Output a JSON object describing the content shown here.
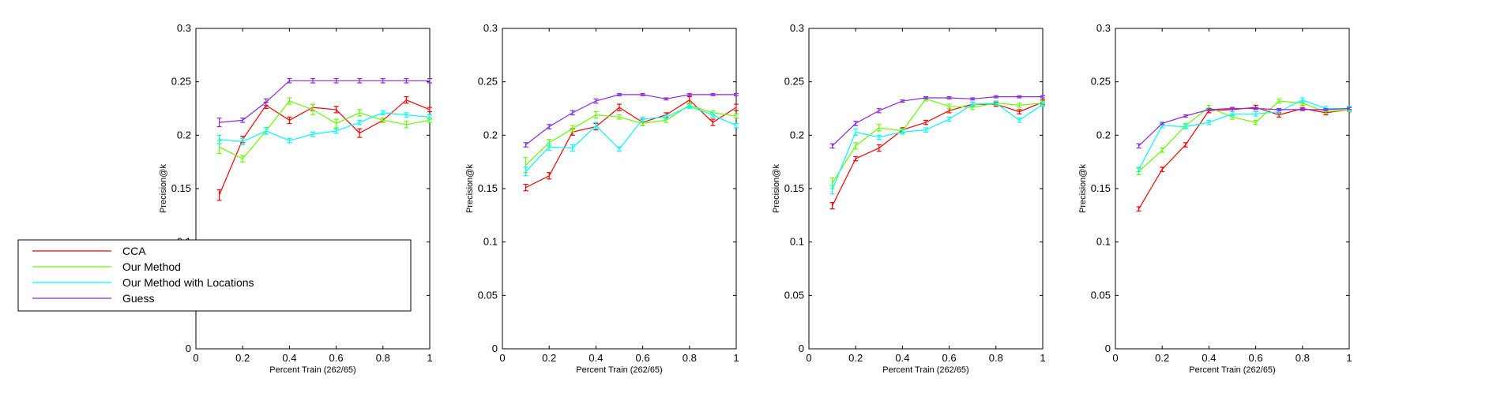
{
  "figure": {
    "legend": {
      "entries": [
        {
          "label": "CCA",
          "color": "#ff0000"
        },
        {
          "label": "Our Method",
          "color": "#66ff00"
        },
        {
          "label": "Our Method with Locations",
          "color": "#00ffff"
        },
        {
          "label": "Guess",
          "color": "#8a2be2"
        }
      ]
    }
  },
  "chart_data": [
    {
      "type": "line",
      "title": "",
      "xlabel": "Percent Train (262/65)",
      "ylabel": "Precision@k",
      "xlim": [
        0,
        1
      ],
      "ylim": [
        0,
        0.3
      ],
      "xticks": [
        0,
        0.2,
        0.4,
        0.6,
        0.8,
        1
      ],
      "xtick_labels": [
        "0",
        "0.2",
        "0.4",
        "0.6",
        "0.8",
        "1"
      ],
      "yticks": [
        0,
        0.05,
        0.1,
        0.15,
        0.2,
        0.25,
        0.3
      ],
      "ytick_labels": [
        "0",
        "0.05",
        "0.1",
        "0.15",
        "0.2",
        "0.25",
        "0.3"
      ],
      "x": [
        0.1,
        0.2,
        0.3,
        0.4,
        0.5,
        0.6,
        0.7,
        0.8,
        0.9,
        1.0
      ],
      "series": [
        {
          "name": "CCA",
          "color": "#ff0000",
          "values": [
            0.144,
            0.196,
            0.228,
            0.214,
            0.226,
            0.224,
            0.202,
            0.214,
            0.233,
            0.224
          ],
          "error": [
            0.005,
            0.003,
            0.003,
            0.003,
            0.003,
            0.003,
            0.004,
            0.002,
            0.003,
            0.002
          ]
        },
        {
          "name": "Our Method",
          "color": "#66ff00",
          "values": [
            0.189,
            0.178,
            0.204,
            0.232,
            0.224,
            0.211,
            0.221,
            0.214,
            0.21,
            0.214
          ],
          "error": [
            0.006,
            0.003,
            0.003,
            0.003,
            0.005,
            0.004,
            0.003,
            0.002,
            0.003,
            0.002
          ]
        },
        {
          "name": "Our Method with Locations",
          "color": "#00ffff",
          "values": [
            0.196,
            0.194,
            0.204,
            0.195,
            0.201,
            0.204,
            0.212,
            0.221,
            0.219,
            0.217
          ],
          "error": [
            0.004,
            0.003,
            0.003,
            0.002,
            0.002,
            0.002,
            0.002,
            0.002,
            0.002,
            0.002
          ]
        },
        {
          "name": "Guess",
          "color": "#8a2be2",
          "values": [
            0.212,
            0.214,
            0.231,
            0.251,
            0.251,
            0.251,
            0.251,
            0.251,
            0.251,
            0.251
          ],
          "error": [
            0.004,
            0.002,
            0.003,
            0.002,
            0.002,
            0.002,
            0.002,
            0.002,
            0.002,
            0.002
          ]
        }
      ]
    },
    {
      "type": "line",
      "title": "",
      "xlabel": "Percent Train (262/65)",
      "ylabel": "Precision@k",
      "xlim": [
        0,
        1
      ],
      "ylim": [
        0,
        0.3
      ],
      "xticks": [
        0,
        0.2,
        0.4,
        0.6,
        0.8,
        1
      ],
      "xtick_labels": [
        "0",
        "0.2",
        "0.4",
        "0.6",
        "0.8",
        "1"
      ],
      "yticks": [
        0,
        0.05,
        0.1,
        0.15,
        0.2,
        0.25,
        0.3
      ],
      "ytick_labels": [
        "0",
        "0.05",
        "0.1",
        "0.15",
        "0.2",
        "0.25",
        "0.3"
      ],
      "x": [
        0.1,
        0.2,
        0.3,
        0.4,
        0.5,
        0.6,
        0.7,
        0.8,
        0.9,
        1.0
      ],
      "series": [
        {
          "name": "CCA",
          "color": "#ff0000",
          "values": [
            0.151,
            0.162,
            0.203,
            0.208,
            0.226,
            0.212,
            0.219,
            0.233,
            0.212,
            0.226
          ],
          "error": [
            0.003,
            0.003,
            0.003,
            0.003,
            0.003,
            0.003,
            0.002,
            0.003,
            0.003,
            0.003
          ]
        },
        {
          "name": "Our Method",
          "color": "#66ff00",
          "values": [
            0.172,
            0.193,
            0.206,
            0.219,
            0.217,
            0.211,
            0.214,
            0.228,
            0.221,
            0.218
          ],
          "error": [
            0.007,
            0.003,
            0.003,
            0.003,
            0.002,
            0.002,
            0.002,
            0.002,
            0.002,
            0.002
          ]
        },
        {
          "name": "Our Method with Locations",
          "color": "#00ffff",
          "values": [
            0.166,
            0.189,
            0.188,
            0.209,
            0.187,
            0.215,
            0.217,
            0.227,
            0.219,
            0.209
          ],
          "error": [
            0.004,
            0.003,
            0.003,
            0.003,
            0.002,
            0.002,
            0.002,
            0.002,
            0.002,
            0.002
          ]
        },
        {
          "name": "Guess",
          "color": "#8a2be2",
          "values": [
            0.191,
            0.208,
            0.221,
            0.232,
            0.238,
            0.238,
            0.234,
            0.238,
            0.238,
            0.238
          ],
          "error": [
            0.002,
            0.002,
            0.002,
            0.002,
            0.001,
            0.001,
            0.001,
            0.001,
            0.001,
            0.001
          ]
        }
      ]
    },
    {
      "type": "line",
      "title": "",
      "xlabel": "Percent Train (262/65)",
      "ylabel": "Precision@k",
      "xlim": [
        0,
        1
      ],
      "ylim": [
        0,
        0.3
      ],
      "xticks": [
        0,
        0.2,
        0.4,
        0.6,
        0.8,
        1
      ],
      "xtick_labels": [
        "0",
        "0.2",
        "0.4",
        "0.6",
        "0.8",
        "1"
      ],
      "yticks": [
        0,
        0.05,
        0.1,
        0.15,
        0.2,
        0.25,
        0.3
      ],
      "ytick_labels": [
        "0",
        "0.05",
        "0.1",
        "0.15",
        "0.2",
        "0.25",
        "0.3"
      ],
      "x": [
        0.1,
        0.2,
        0.3,
        0.4,
        0.5,
        0.6,
        0.7,
        0.8,
        0.9,
        1.0
      ],
      "series": [
        {
          "name": "CCA",
          "color": "#ff0000",
          "values": [
            0.134,
            0.178,
            0.188,
            0.205,
            0.212,
            0.223,
            0.229,
            0.229,
            0.222,
            0.231
          ],
          "error": [
            0.003,
            0.002,
            0.003,
            0.002,
            0.002,
            0.002,
            0.002,
            0.002,
            0.002,
            0.002
          ]
        },
        {
          "name": "Our Method",
          "color": "#66ff00",
          "values": [
            0.155,
            0.19,
            0.207,
            0.204,
            0.234,
            0.227,
            0.226,
            0.23,
            0.228,
            0.23
          ],
          "error": [
            0.005,
            0.003,
            0.003,
            0.002,
            0.002,
            0.002,
            0.002,
            0.002,
            0.002,
            0.002
          ]
        },
        {
          "name": "Our Method with Locations",
          "color": "#00ffff",
          "values": [
            0.149,
            0.203,
            0.198,
            0.203,
            0.205,
            0.215,
            0.229,
            0.23,
            0.214,
            0.229
          ],
          "error": [
            0.004,
            0.003,
            0.002,
            0.002,
            0.002,
            0.002,
            0.002,
            0.002,
            0.002,
            0.002
          ]
        },
        {
          "name": "Guess",
          "color": "#8a2be2",
          "values": [
            0.19,
            0.211,
            0.223,
            0.232,
            0.235,
            0.235,
            0.234,
            0.236,
            0.236,
            0.236
          ],
          "error": [
            0.002,
            0.002,
            0.002,
            0.001,
            0.001,
            0.001,
            0.001,
            0.001,
            0.001,
            0.001
          ]
        }
      ]
    },
    {
      "type": "line",
      "title": "",
      "xlabel": "Percent Train (262/65)",
      "ylabel": "Precision@k",
      "xlim": [
        0,
        1
      ],
      "ylim": [
        0,
        0.3
      ],
      "xticks": [
        0,
        0.2,
        0.4,
        0.6,
        0.8,
        1
      ],
      "xtick_labels": [
        "0",
        "0.2",
        "0.4",
        "0.6",
        "0.8",
        "1"
      ],
      "yticks": [
        0,
        0.05,
        0.1,
        0.15,
        0.2,
        0.25,
        0.3
      ],
      "ytick_labels": [
        "0",
        "0.05",
        "0.1",
        "0.15",
        "0.2",
        "0.25",
        "0.3"
      ],
      "x": [
        0.1,
        0.2,
        0.3,
        0.4,
        0.5,
        0.6,
        0.7,
        0.8,
        0.9,
        1.0
      ],
      "series": [
        {
          "name": "CCA",
          "color": "#ff0000",
          "values": [
            0.131,
            0.168,
            0.191,
            0.223,
            0.224,
            0.226,
            0.219,
            0.225,
            0.221,
            0.224
          ],
          "error": [
            0.002,
            0.002,
            0.002,
            0.002,
            0.002,
            0.002,
            0.002,
            0.001,
            0.002,
            0.002
          ]
        },
        {
          "name": "Our Method",
          "color": "#66ff00",
          "values": [
            0.166,
            0.186,
            0.209,
            0.226,
            0.217,
            0.212,
            0.232,
            0.23,
            0.222,
            0.224
          ],
          "error": [
            0.003,
            0.002,
            0.002,
            0.002,
            0.002,
            0.002,
            0.002,
            0.002,
            0.002,
            0.002
          ]
        },
        {
          "name": "Our Method with Locations",
          "color": "#00ffff",
          "values": [
            0.168,
            0.209,
            0.208,
            0.212,
            0.22,
            0.22,
            0.222,
            0.233,
            0.225,
            0.225
          ],
          "error": [
            0.002,
            0.002,
            0.002,
            0.002,
            0.002,
            0.002,
            0.002,
            0.002,
            0.002,
            0.002
          ]
        },
        {
          "name": "Guess",
          "color": "#8a2be2",
          "values": [
            0.19,
            0.211,
            0.218,
            0.224,
            0.225,
            0.225,
            0.224,
            0.224,
            0.224,
            0.225
          ],
          "error": [
            0.002,
            0.001,
            0.001,
            0.001,
            0.001,
            0.001,
            0.001,
            0.001,
            0.001,
            0.001
          ]
        }
      ]
    }
  ]
}
